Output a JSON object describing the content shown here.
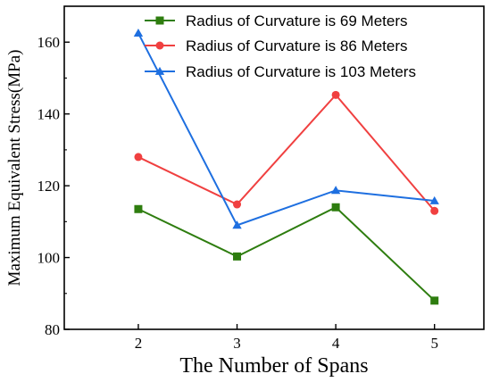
{
  "chart_data": {
    "type": "line",
    "title": "",
    "xlabel": "The Number of Spans",
    "ylabel": "Maximum Equivalent Stress(MPa)",
    "x": [
      2,
      3,
      4,
      5
    ],
    "xlim": [
      1.25,
      5.5
    ],
    "ylim": [
      80,
      170
    ],
    "xticks": [
      2,
      3,
      4,
      5
    ],
    "yticks": [
      80,
      100,
      120,
      140,
      160
    ],
    "grid": false,
    "legend_position": "top-right",
    "series": [
      {
        "name": "Radius of Curvature is 69 Meters",
        "color": "#2e7d0f",
        "marker": "square",
        "values": [
          113.5,
          100.3,
          114.0,
          88.0
        ]
      },
      {
        "name": "Radius of Curvature is 86 Meters",
        "color": "#f04040",
        "marker": "circle",
        "values": [
          128.0,
          114.8,
          145.3,
          113.0
        ]
      },
      {
        "name": "Radius of Curvature is 103 Meters",
        "color": "#1e6fe0",
        "marker": "triangle",
        "values": [
          162.5,
          109.0,
          118.7,
          115.8
        ]
      }
    ]
  }
}
